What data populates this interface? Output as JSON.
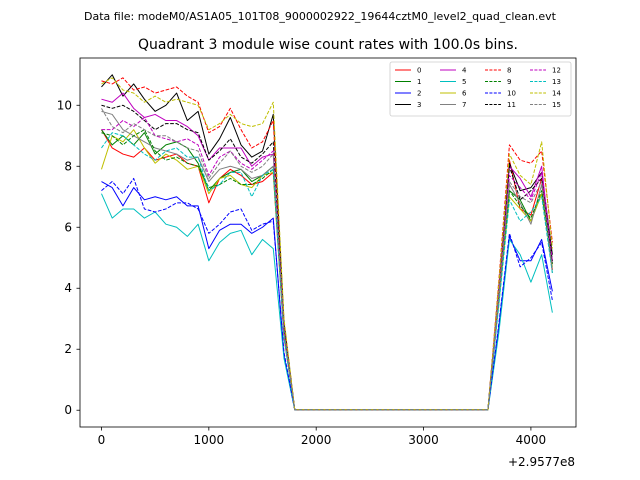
{
  "suptitle": "Data file: modeM0/AS1A05_101T08_9000002922_19644cztM0_level2_quad_clean.evt",
  "chart_data": {
    "type": "line",
    "title": "Quadrant 3 module wise count rates with 100.0s bins.",
    "xlabel": "",
    "ylabel": "",
    "x_offset_label": "+2.9577e8",
    "xlim": [
      -200,
      4420
    ],
    "ylim": [
      -0.55,
      11.55
    ],
    "xticks": [
      0,
      1000,
      2000,
      3000,
      4000
    ],
    "xtick_labels": [
      "0",
      "1000",
      "2000",
      "3000",
      "4000"
    ],
    "yticks": [
      0,
      2,
      4,
      6,
      8,
      10
    ],
    "ytick_labels": [
      "0",
      "2",
      "4",
      "6",
      "8",
      "10"
    ],
    "grid": false,
    "legend_position": "top-right",
    "legend_columns": 4,
    "x": [
      0,
      100,
      200,
      300,
      400,
      500,
      600,
      700,
      800,
      900,
      1000,
      1100,
      1200,
      1300,
      1400,
      1500,
      1600,
      1700,
      1800,
      1900,
      2000,
      2100,
      2200,
      2300,
      2400,
      2500,
      2600,
      2700,
      2800,
      2900,
      3000,
      3100,
      3200,
      3300,
      3400,
      3500,
      3600,
      3700,
      3800,
      3900,
      4000,
      4100,
      4200
    ],
    "series": [
      {
        "name": "0",
        "color": "#ff0000",
        "dash": "solid",
        "values": [
          9.2,
          8.6,
          8.4,
          8.3,
          8.6,
          8.2,
          8.3,
          8.4,
          8.1,
          8.0,
          6.8,
          7.6,
          7.9,
          7.7,
          7.4,
          7.5,
          7.8,
          2.4,
          0.02,
          0.02,
          0.02,
          0.02,
          0.02,
          0.02,
          0.02,
          0.02,
          0.02,
          0.02,
          0.02,
          0.02,
          0.02,
          0.02,
          0.02,
          0.02,
          0.02,
          0.02,
          0.02,
          3.7,
          8.2,
          6.6,
          6.4,
          7.6,
          4.6
        ]
      },
      {
        "name": "1",
        "color": "#008000",
        "dash": "solid",
        "values": [
          9.2,
          8.7,
          9.0,
          8.7,
          9.1,
          8.4,
          8.7,
          8.8,
          8.6,
          8.1,
          7.2,
          7.6,
          7.8,
          7.9,
          7.5,
          7.7,
          8.0,
          2.5,
          0.02,
          0.02,
          0.02,
          0.02,
          0.02,
          0.02,
          0.02,
          0.02,
          0.02,
          0.02,
          0.02,
          0.02,
          0.02,
          0.02,
          0.02,
          0.02,
          0.02,
          0.02,
          0.02,
          3.5,
          7.2,
          6.9,
          6.2,
          7.1,
          4.9
        ]
      },
      {
        "name": "2",
        "color": "#0000ff",
        "dash": "solid",
        "values": [
          7.5,
          7.3,
          6.7,
          7.3,
          6.9,
          7.0,
          6.9,
          7.0,
          6.7,
          6.7,
          5.3,
          5.9,
          6.1,
          6.1,
          5.8,
          6.0,
          6.3,
          1.8,
          0.02,
          0.02,
          0.02,
          0.02,
          0.02,
          0.02,
          0.02,
          0.02,
          0.02,
          0.02,
          0.02,
          0.02,
          0.02,
          0.02,
          0.02,
          0.02,
          0.02,
          0.02,
          0.02,
          2.7,
          5.7,
          4.9,
          4.9,
          5.6,
          3.9
        ]
      },
      {
        "name": "3",
        "color": "#000000",
        "dash": "solid",
        "values": [
          10.6,
          11.0,
          10.3,
          10.7,
          10.2,
          9.8,
          10.0,
          10.4,
          9.5,
          9.8,
          8.4,
          8.9,
          9.6,
          8.7,
          8.3,
          8.5,
          9.7,
          2.9,
          0.02,
          0.02,
          0.02,
          0.02,
          0.02,
          0.02,
          0.02,
          0.02,
          0.02,
          0.02,
          0.02,
          0.02,
          0.02,
          0.02,
          0.02,
          0.02,
          0.02,
          0.02,
          0.02,
          4.0,
          8.1,
          7.2,
          7.3,
          7.8,
          5.1
        ]
      },
      {
        "name": "4",
        "color": "#bf00bf",
        "dash": "solid",
        "values": [
          10.2,
          10.1,
          10.4,
          9.9,
          9.6,
          9.7,
          9.5,
          9.5,
          9.3,
          9.0,
          8.2,
          8.6,
          8.6,
          8.6,
          8.0,
          8.3,
          8.4,
          2.6,
          0.02,
          0.02,
          0.02,
          0.02,
          0.02,
          0.02,
          0.02,
          0.02,
          0.02,
          0.02,
          0.02,
          0.02,
          0.02,
          0.02,
          0.02,
          0.02,
          0.02,
          0.02,
          0.02,
          3.9,
          8.0,
          7.6,
          7.0,
          8.0,
          4.8
        ]
      },
      {
        "name": "5",
        "color": "#00bfbf",
        "dash": "solid",
        "values": [
          7.1,
          6.3,
          6.6,
          6.6,
          6.3,
          6.5,
          6.1,
          6.0,
          5.7,
          6.1,
          4.9,
          5.5,
          5.8,
          5.9,
          5.1,
          5.6,
          5.3,
          1.7,
          0.02,
          0.02,
          0.02,
          0.02,
          0.02,
          0.02,
          0.02,
          0.02,
          0.02,
          0.02,
          0.02,
          0.02,
          0.02,
          0.02,
          0.02,
          0.02,
          0.02,
          0.02,
          0.02,
          2.5,
          5.6,
          5.1,
          4.2,
          5.1,
          3.2
        ]
      },
      {
        "name": "6",
        "color": "#bfbf00",
        "dash": "solid",
        "values": [
          7.9,
          9.0,
          8.8,
          9.2,
          8.6,
          8.1,
          8.4,
          8.2,
          7.9,
          8.0,
          7.1,
          7.6,
          7.7,
          7.4,
          7.3,
          7.7,
          7.8,
          2.4,
          0.02,
          0.02,
          0.02,
          0.02,
          0.02,
          0.02,
          0.02,
          0.02,
          0.02,
          0.02,
          0.02,
          0.02,
          0.02,
          0.02,
          0.02,
          0.02,
          0.02,
          0.02,
          0.02,
          3.5,
          7.0,
          6.6,
          6.2,
          7.1,
          4.7
        ]
      },
      {
        "name": "7",
        "color": "#808080",
        "dash": "solid",
        "values": [
          9.8,
          9.7,
          9.2,
          9.0,
          8.8,
          8.6,
          8.5,
          8.4,
          8.2,
          8.3,
          7.5,
          7.9,
          8.0,
          7.9,
          7.6,
          7.7,
          8.0,
          2.5,
          0.02,
          0.02,
          0.02,
          0.02,
          0.02,
          0.02,
          0.02,
          0.02,
          0.02,
          0.02,
          0.02,
          0.02,
          0.02,
          0.02,
          0.02,
          0.02,
          0.02,
          0.02,
          0.02,
          3.6,
          7.4,
          6.8,
          6.1,
          7.4,
          4.5
        ]
      },
      {
        "name": "8",
        "color": "#ff0000",
        "dash": "dashed",
        "values": [
          10.8,
          10.7,
          10.9,
          10.5,
          10.6,
          10.4,
          10.5,
          10.6,
          10.3,
          10.1,
          9.1,
          9.3,
          9.9,
          9.2,
          8.6,
          8.8,
          9.5,
          2.9,
          0.02,
          0.02,
          0.02,
          0.02,
          0.02,
          0.02,
          0.02,
          0.02,
          0.02,
          0.02,
          0.02,
          0.02,
          0.02,
          0.02,
          0.02,
          0.02,
          0.02,
          0.02,
          0.02,
          4.2,
          8.7,
          8.2,
          8.1,
          8.5,
          5.5
        ]
      },
      {
        "name": "9",
        "color": "#008000",
        "dash": "dashed",
        "values": [
          9.1,
          9.0,
          8.7,
          9.0,
          9.2,
          8.5,
          8.2,
          8.3,
          8.1,
          8.0,
          7.3,
          7.4,
          7.6,
          7.4,
          7.4,
          7.6,
          7.9,
          2.5,
          0.02,
          0.02,
          0.02,
          0.02,
          0.02,
          0.02,
          0.02,
          0.02,
          0.02,
          0.02,
          0.02,
          0.02,
          0.02,
          0.02,
          0.02,
          0.02,
          0.02,
          0.02,
          0.02,
          3.6,
          7.2,
          6.7,
          6.3,
          7.2,
          4.8
        ]
      },
      {
        "name": "10",
        "color": "#0000ff",
        "dash": "dashed",
        "values": [
          7.2,
          7.5,
          7.1,
          7.6,
          6.6,
          6.5,
          6.6,
          6.8,
          6.8,
          6.6,
          5.8,
          6.1,
          6.5,
          6.6,
          5.9,
          6.1,
          6.2,
          1.9,
          0.02,
          0.02,
          0.02,
          0.02,
          0.02,
          0.02,
          0.02,
          0.02,
          0.02,
          0.02,
          0.02,
          0.02,
          0.02,
          0.02,
          0.02,
          0.02,
          0.02,
          0.02,
          0.02,
          2.8,
          5.8,
          4.7,
          5.0,
          5.5,
          3.6
        ]
      },
      {
        "name": "11",
        "color": "#000000",
        "dash": "dashed",
        "values": [
          10.0,
          9.9,
          10.0,
          9.8,
          9.5,
          9.2,
          9.4,
          9.4,
          9.2,
          9.1,
          8.2,
          8.5,
          8.9,
          8.3,
          8.1,
          8.4,
          8.8,
          2.7,
          0.02,
          0.02,
          0.02,
          0.02,
          0.02,
          0.02,
          0.02,
          0.02,
          0.02,
          0.02,
          0.02,
          0.02,
          0.02,
          0.02,
          0.02,
          0.02,
          0.02,
          0.02,
          0.02,
          3.9,
          8.0,
          6.9,
          7.2,
          7.6,
          4.9
        ]
      },
      {
        "name": "12",
        "color": "#bf00bf",
        "dash": "dashed",
        "values": [
          9.2,
          9.2,
          9.5,
          9.3,
          9.6,
          9.0,
          8.9,
          8.8,
          8.9,
          8.7,
          7.7,
          8.3,
          8.5,
          8.1,
          7.9,
          8.2,
          8.5,
          2.6,
          0.02,
          0.02,
          0.02,
          0.02,
          0.02,
          0.02,
          0.02,
          0.02,
          0.02,
          0.02,
          0.02,
          0.02,
          0.02,
          0.02,
          0.02,
          0.02,
          0.02,
          0.02,
          0.02,
          3.8,
          7.7,
          7.3,
          6.9,
          7.8,
          4.9
        ]
      },
      {
        "name": "13",
        "color": "#00bfbf",
        "dash": "dashed",
        "values": [
          8.6,
          9.1,
          9.0,
          8.7,
          8.4,
          8.2,
          8.5,
          8.6,
          8.3,
          8.3,
          7.2,
          7.4,
          7.8,
          7.8,
          7.0,
          7.7,
          7.9,
          2.4,
          0.02,
          0.02,
          0.02,
          0.02,
          0.02,
          0.02,
          0.02,
          0.02,
          0.02,
          0.02,
          0.02,
          0.02,
          0.02,
          0.02,
          0.02,
          0.02,
          0.02,
          0.02,
          0.02,
          3.4,
          6.9,
          6.2,
          6.5,
          7.0,
          4.5
        ]
      },
      {
        "name": "14",
        "color": "#bfbf00",
        "dash": "dashed",
        "values": [
          10.7,
          10.9,
          10.5,
          10.4,
          10.1,
          10.3,
          10.1,
          10.2,
          10.1,
          10.0,
          9.2,
          9.4,
          9.7,
          9.4,
          9.3,
          9.4,
          10.1,
          3.0,
          0.02,
          0.02,
          0.02,
          0.02,
          0.02,
          0.02,
          0.02,
          0.02,
          0.02,
          0.02,
          0.02,
          0.02,
          0.02,
          0.02,
          0.02,
          0.02,
          0.02,
          0.02,
          0.02,
          4.1,
          8.4,
          7.7,
          7.4,
          8.8,
          5.3
        ]
      },
      {
        "name": "15",
        "color": "#808080",
        "dash": "dashed",
        "values": [
          9.9,
          9.3,
          9.1,
          9.4,
          9.2,
          9.0,
          9.0,
          8.8,
          8.6,
          8.5,
          7.6,
          8.1,
          8.5,
          8.0,
          7.8,
          8.0,
          8.4,
          2.6,
          0.02,
          0.02,
          0.02,
          0.02,
          0.02,
          0.02,
          0.02,
          0.02,
          0.02,
          0.02,
          0.02,
          0.02,
          0.02,
          0.02,
          0.02,
          0.02,
          0.02,
          0.02,
          0.02,
          3.7,
          7.5,
          7.0,
          6.8,
          7.5,
          4.6
        ]
      }
    ]
  }
}
